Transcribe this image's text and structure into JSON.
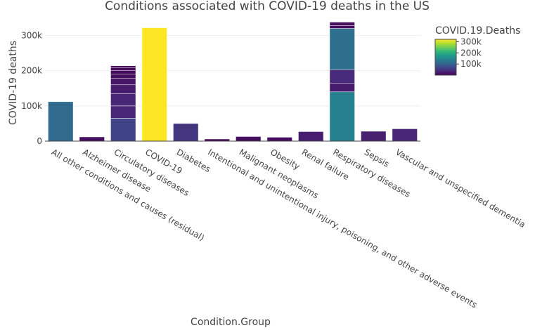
{
  "chart_data": {
    "type": "bar",
    "barmode": "stack",
    "title": "Conditions associated with COVID-19 deaths in the US",
    "xlabel": "Condition.Group",
    "ylabel": "COVID-19 deaths",
    "ylim": [
      0,
      345000
    ],
    "yticks": [
      0,
      100000,
      200000,
      300000
    ],
    "ytick_labels": [
      "0",
      "100k",
      "200k",
      "300k"
    ],
    "grid": true,
    "categories": [
      "All other conditions and causes (residual)",
      "Alzheimer disease",
      "Circulatory diseases",
      "COVID-19",
      "Diabetes",
      "Intentional and unintentional injury, poisoning, and other adverse events",
      "Malignant neoplasms",
      "Obesity",
      "Renal failure",
      "Respiratory diseases",
      "Sepsis",
      "Vascular and unspecified dementia"
    ],
    "segments": [
      [
        112000
      ],
      [
        12000
      ],
      [
        65000,
        35000,
        35000,
        25000,
        18000,
        12000,
        10000,
        8000,
        6000
      ],
      [
        322000
      ],
      [
        50000
      ],
      [
        6000
      ],
      [
        13000
      ],
      [
        11000
      ],
      [
        27000
      ],
      [
        140000,
        25000,
        38000,
        117000,
        8000,
        10000
      ],
      [
        28000
      ],
      [
        35000
      ]
    ],
    "colorscale": {
      "title": "COVID.19.Deaths",
      "min": 0,
      "max": 322000,
      "stops": [
        "#440154",
        "#482878",
        "#3e4989",
        "#31688e",
        "#26828e",
        "#1f9e89",
        "#35b779",
        "#6ece58",
        "#b5de2b",
        "#fde725"
      ],
      "ticks": [
        100000,
        200000,
        300000
      ],
      "tick_labels": [
        "100k",
        "200k",
        "300k"
      ]
    }
  }
}
